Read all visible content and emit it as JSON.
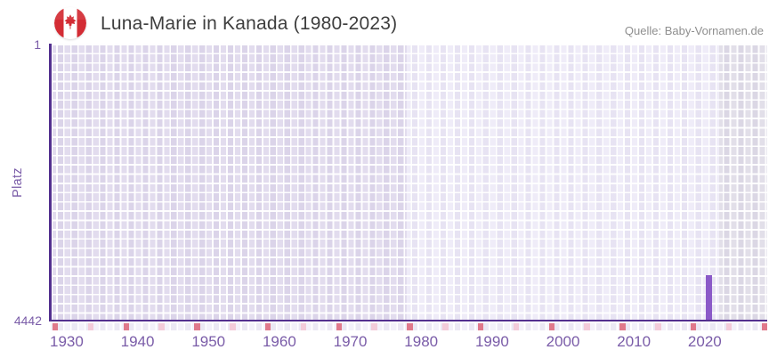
{
  "header": {
    "title": "Luna-Marie in Kanada (1980-2023)",
    "source": "Quelle: Baby-Vornamen.de",
    "flag_icon": "canada-flag"
  },
  "chart_data": {
    "type": "bar",
    "title": "Luna-Marie in Kanada (1980-2023)",
    "xlabel": "",
    "ylabel": "Platz",
    "legend": "none",
    "grid": "on",
    "y_axis": {
      "inverted": true,
      "min": 1,
      "max": 4442,
      "top_label": "1",
      "bottom_label": "4442"
    },
    "x_axis": {
      "start": 1928,
      "end": 2028,
      "tick_labels": [
        "1930",
        "1940",
        "1950",
        "1960",
        "1970",
        "1980",
        "1990",
        "2000",
        "2010",
        "2020"
      ],
      "tick_years": [
        1930,
        1940,
        1950,
        1960,
        1970,
        1980,
        1990,
        2000,
        2010,
        2020
      ]
    },
    "series": [
      {
        "name": "Platz",
        "points": [
          {
            "year": 2020,
            "platz": 3728
          }
        ]
      }
    ],
    "background_bands": [
      {
        "from": 1928,
        "to": 1978,
        "role": "before-data-range",
        "color": "#e2dcee"
      },
      {
        "from": 1978,
        "to": 2022,
        "role": "data-range",
        "color": "#efecf8"
      },
      {
        "from": 2022,
        "to": 2029,
        "role": "after-data-range",
        "color": "#e2dfe9"
      }
    ],
    "baseline_markers": {
      "dark_pink_years": [
        1928,
        1938,
        1948,
        1958,
        1968,
        1978,
        1988,
        1998,
        2008,
        2018,
        2028
      ],
      "light_pink_years": [
        1933,
        1943,
        1953,
        1963,
        1973,
        1983,
        1993,
        2003,
        2013,
        2023
      ]
    },
    "colors": {
      "bar": "#8b5ac8",
      "axis_line": "#53308f",
      "axis_label": "#7a5ca8",
      "title_text": "#3e3e3e",
      "source_text": "#8f8f8f",
      "marker_dark_pink": "#e0798b",
      "marker_light_pink": "#f3cbd9",
      "flag_red": "#d32c34"
    }
  }
}
